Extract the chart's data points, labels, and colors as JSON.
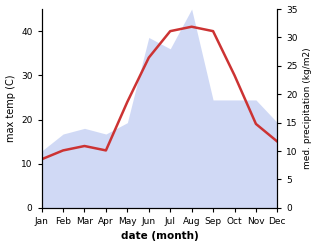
{
  "months": [
    "Jan",
    "Feb",
    "Mar",
    "Apr",
    "May",
    "Jun",
    "Jul",
    "Aug",
    "Sep",
    "Oct",
    "Nov",
    "Dec"
  ],
  "month_indices": [
    1,
    2,
    3,
    4,
    5,
    6,
    7,
    8,
    9,
    10,
    11,
    12
  ],
  "temp": [
    11,
    13,
    14,
    13,
    24,
    34,
    40,
    41,
    40,
    30,
    19,
    15
  ],
  "precip": [
    10,
    13,
    14,
    13,
    15,
    30,
    28,
    35,
    19,
    19,
    19,
    15
  ],
  "temp_color": "#cc3333",
  "precip_color": "#aabbee",
  "precip_fill_alpha": 0.55,
  "xlabel": "date (month)",
  "ylabel_left": "max temp (C)",
  "ylabel_right": "med. precipitation (kg/m2)",
  "ylim_left": [
    0,
    45
  ],
  "ylim_right": [
    0,
    35
  ],
  "yticks_left": [
    0,
    10,
    20,
    30,
    40
  ],
  "yticks_right": [
    0,
    5,
    10,
    15,
    20,
    25,
    30,
    35
  ],
  "background_color": "#ffffff",
  "line_width": 1.8,
  "precip_scale_factor": 1.2857
}
